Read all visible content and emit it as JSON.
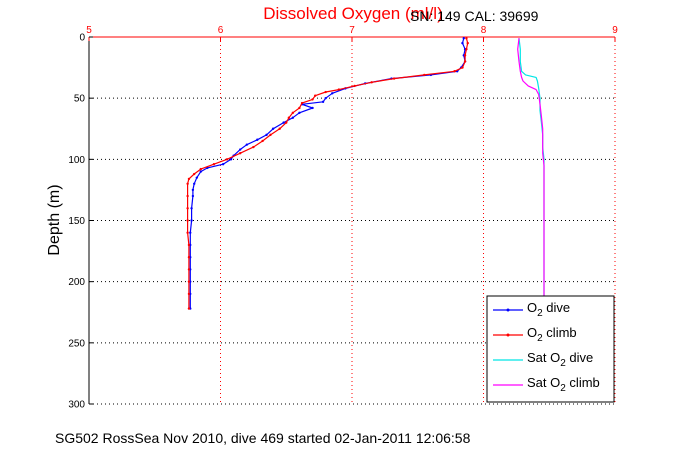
{
  "chart_data": {
    "type": "line",
    "title": "Dissolved Oxygen (ml/l)",
    "subtitle": "SN: 149  CAL: 39699",
    "footer": "SG502 RossSea Nov 2010, dive 469 started 02-Jan-2011 12:06:58",
    "xlabel": "",
    "ylabel": "Depth (m)",
    "xlim": [
      5,
      9
    ],
    "ylim": [
      0,
      300
    ],
    "y_reversed": true,
    "x_axis_position": "top",
    "x_ticks": [
      "5",
      "6",
      "7",
      "8",
      "9"
    ],
    "y_ticks": [
      "0",
      "50",
      "100",
      "150",
      "200",
      "250",
      "300"
    ],
    "grid": true,
    "legend_position": "bottom-right",
    "colors": {
      "title": "#ff0000",
      "x_axis": "#ff0000",
      "o2_dive": "#0000ff",
      "o2_climb": "#ff0000",
      "sat_dive": "#00e5e5",
      "sat_climb": "#ff00ff"
    },
    "series": [
      {
        "name": "O2 dive",
        "legend_main": "O",
        "legend_sub": "2",
        "legend_tail": " dive",
        "color": "#0000ff",
        "marker": "point",
        "points": [
          [
            7.85,
            1
          ],
          [
            7.84,
            5
          ],
          [
            7.86,
            10
          ],
          [
            7.85,
            15
          ],
          [
            7.86,
            20
          ],
          [
            7.83,
            25
          ],
          [
            7.8,
            28
          ],
          [
            7.6,
            31
          ],
          [
            7.3,
            34
          ],
          [
            7.1,
            38
          ],
          [
            6.95,
            42
          ],
          [
            6.85,
            46
          ],
          [
            6.8,
            50
          ],
          [
            6.78,
            53
          ],
          [
            6.62,
            55
          ],
          [
            6.7,
            58
          ],
          [
            6.6,
            62
          ],
          [
            6.55,
            66
          ],
          [
            6.48,
            70
          ],
          [
            6.4,
            75
          ],
          [
            6.35,
            80
          ],
          [
            6.28,
            84
          ],
          [
            6.2,
            88
          ],
          [
            6.15,
            92
          ],
          [
            6.1,
            97
          ],
          [
            6.08,
            100
          ],
          [
            6.02,
            104
          ],
          [
            5.9,
            107
          ],
          [
            5.85,
            110
          ],
          [
            5.82,
            115
          ],
          [
            5.8,
            120
          ],
          [
            5.79,
            125
          ],
          [
            5.79,
            130
          ],
          [
            5.78,
            140
          ],
          [
            5.78,
            150
          ],
          [
            5.77,
            160
          ],
          [
            5.77,
            170
          ],
          [
            5.77,
            180
          ],
          [
            5.77,
            190
          ],
          [
            5.77,
            200
          ],
          [
            5.77,
            210
          ],
          [
            5.77,
            222
          ]
        ]
      },
      {
        "name": "O2 climb",
        "legend_main": "O",
        "legend_sub": "2",
        "legend_tail": " climb",
        "color": "#ff0000",
        "marker": "point",
        "points": [
          [
            7.87,
            1
          ],
          [
            7.88,
            5
          ],
          [
            7.87,
            10
          ],
          [
            7.86,
            15
          ],
          [
            7.86,
            20
          ],
          [
            7.84,
            25
          ],
          [
            7.78,
            28
          ],
          [
            7.55,
            31
          ],
          [
            7.32,
            34
          ],
          [
            7.15,
            37
          ],
          [
            7.02,
            40
          ],
          [
            6.9,
            43
          ],
          [
            6.8,
            45
          ],
          [
            6.72,
            48
          ],
          [
            6.7,
            51
          ],
          [
            6.62,
            54
          ],
          [
            6.6,
            58
          ],
          [
            6.55,
            62
          ],
          [
            6.52,
            66
          ],
          [
            6.5,
            70
          ],
          [
            6.45,
            75
          ],
          [
            6.38,
            80
          ],
          [
            6.32,
            85
          ],
          [
            6.25,
            90
          ],
          [
            6.15,
            95
          ],
          [
            6.05,
            100
          ],
          [
            5.95,
            104
          ],
          [
            5.85,
            108
          ],
          [
            5.8,
            112
          ],
          [
            5.76,
            116
          ],
          [
            5.75,
            120
          ],
          [
            5.75,
            130
          ],
          [
            5.75,
            140
          ],
          [
            5.75,
            150
          ],
          [
            5.75,
            160
          ],
          [
            5.76,
            170
          ],
          [
            5.76,
            180
          ],
          [
            5.76,
            190
          ],
          [
            5.76,
            200
          ],
          [
            5.76,
            210
          ],
          [
            5.76,
            222
          ]
        ]
      },
      {
        "name": "Sat O2 dive",
        "legend_main": "Sat O",
        "legend_sub": "2",
        "legend_tail": " dive",
        "color": "#00e5e5",
        "marker": "none",
        "points": [
          [
            8.27,
            1
          ],
          [
            8.28,
            10
          ],
          [
            8.28,
            20
          ],
          [
            8.29,
            28
          ],
          [
            8.32,
            31
          ],
          [
            8.4,
            33
          ],
          [
            8.41,
            36
          ],
          [
            8.42,
            42
          ],
          [
            8.43,
            50
          ],
          [
            8.43,
            60
          ],
          [
            8.44,
            70
          ],
          [
            8.45,
            80
          ],
          [
            8.45,
            90
          ],
          [
            8.46,
            100
          ],
          [
            8.46,
            110
          ],
          [
            8.46,
            120
          ],
          [
            8.46,
            130
          ],
          [
            8.46,
            150
          ],
          [
            8.46,
            170
          ],
          [
            8.46,
            190
          ],
          [
            8.46,
            210
          ],
          [
            8.46,
            222
          ]
        ]
      },
      {
        "name": "Sat O2 climb",
        "legend_main": "Sat O",
        "legend_sub": "2",
        "legend_tail": " climb",
        "color": "#ff00ff",
        "marker": "none",
        "points": [
          [
            8.27,
            1
          ],
          [
            8.26,
            10
          ],
          [
            8.27,
            20
          ],
          [
            8.28,
            28
          ],
          [
            8.29,
            33
          ],
          [
            8.3,
            36
          ],
          [
            8.34,
            40
          ],
          [
            8.4,
            43
          ],
          [
            8.42,
            47
          ],
          [
            8.43,
            55
          ],
          [
            8.44,
            65
          ],
          [
            8.45,
            75
          ],
          [
            8.45,
            85
          ],
          [
            8.45,
            95
          ],
          [
            8.46,
            105
          ],
          [
            8.46,
            115
          ],
          [
            8.46,
            125
          ],
          [
            8.46,
            140
          ],
          [
            8.46,
            160
          ],
          [
            8.46,
            180
          ],
          [
            8.46,
            200
          ],
          [
            8.46,
            222
          ]
        ]
      }
    ]
  }
}
